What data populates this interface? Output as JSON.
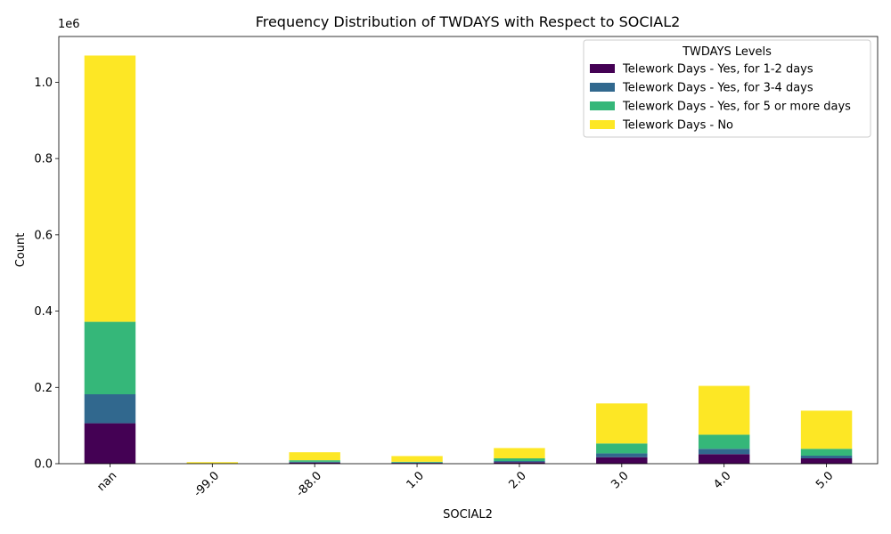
{
  "chart_data": {
    "type": "bar",
    "stacked": true,
    "title": "Frequency Distribution of TWDAYS with Respect to SOCIAL2",
    "xlabel": "SOCIAL2",
    "ylabel": "Count",
    "y_offset_label": "1e6",
    "categories": [
      "nan",
      "-99.0",
      "-88.0",
      "1.0",
      "2.0",
      "3.0",
      "4.0",
      "5.0"
    ],
    "ylim": [
      0,
      1120000
    ],
    "yticks": [
      0,
      200000,
      400000,
      600000,
      800000,
      1000000
    ],
    "ytick_labels": [
      "0.0",
      "0.2",
      "0.4",
      "0.6",
      "0.8",
      "1.0"
    ],
    "legend_title": "TWDAYS Levels",
    "legend_position": "top-right",
    "grid": false,
    "series": [
      {
        "name": "Telework Days - Yes, for 1-2 days",
        "color": "#440154",
        "values": [
          106000,
          300,
          3000,
          2000,
          4000,
          17000,
          25000,
          14000
        ]
      },
      {
        "name": "Telework Days - Yes, for 3-4 days",
        "color": "#31688e",
        "values": [
          76000,
          200,
          2000,
          1000,
          3000,
          10000,
          14000,
          7000
        ]
      },
      {
        "name": "Telework Days - Yes, for 5 or more days",
        "color": "#35b779",
        "values": [
          190000,
          500,
          4000,
          2000,
          7000,
          26000,
          37000,
          18000
        ]
      },
      {
        "name": "Telework Days - No",
        "color": "#fde725",
        "values": [
          698000,
          3000,
          21000,
          15000,
          27000,
          105000,
          128000,
          100000
        ]
      }
    ]
  }
}
